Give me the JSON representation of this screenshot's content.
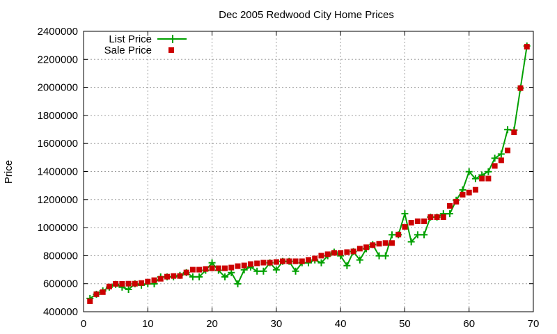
{
  "chart_data": {
    "type": "line",
    "title": "Dec 2005 Redwood City Home Prices",
    "xlabel": "",
    "ylabel": "Price",
    "xlim": [
      0,
      70
    ],
    "ylim": [
      400000,
      2400000
    ],
    "x_ticks": [
      0,
      10,
      20,
      30,
      40,
      50,
      60,
      70
    ],
    "y_ticks": [
      400000,
      600000,
      800000,
      1000000,
      1200000,
      1400000,
      1600000,
      1800000,
      2000000,
      2200000,
      2400000
    ],
    "grid": true,
    "legend_position": "top-left",
    "series": [
      {
        "name": "List Price",
        "style": "linespoints",
        "color": "#00a000",
        "marker": "plus",
        "x": [
          1,
          2,
          3,
          4,
          5,
          6,
          7,
          8,
          9,
          10,
          11,
          12,
          13,
          14,
          15,
          16,
          17,
          18,
          19,
          20,
          21,
          22,
          23,
          24,
          25,
          26,
          27,
          28,
          29,
          30,
          31,
          32,
          33,
          34,
          35,
          36,
          37,
          38,
          39,
          40,
          41,
          42,
          43,
          44,
          45,
          46,
          47,
          48,
          49,
          50,
          51,
          52,
          53,
          54,
          55,
          56,
          57,
          58,
          59,
          60,
          61,
          62,
          63,
          64,
          65,
          66,
          67,
          68,
          69
        ],
        "y": [
          495000,
          525000,
          549000,
          575000,
          595000,
          575000,
          559000,
          599000,
          589000,
          599000,
          599000,
          649000,
          649000,
          649000,
          659000,
          679000,
          649000,
          649000,
          695000,
          749000,
          695000,
          649000,
          679000,
          599000,
          699000,
          719000,
          689000,
          689000,
          749000,
          699000,
          759000,
          759000,
          689000,
          749000,
          749000,
          769000,
          749000,
          799000,
          825000,
          799000,
          729000,
          829000,
          769000,
          849000,
          879000,
          799000,
          799000,
          949000,
          949000,
          1099000,
          899000,
          949000,
          949000,
          1075000,
          1075000,
          1099000,
          1099000,
          1195000,
          1269000,
          1399000,
          1349000,
          1375000,
          1399000,
          1495000,
          1525000,
          1699000,
          1695000,
          1995000,
          2295000
        ]
      },
      {
        "name": "Sale Price",
        "style": "points",
        "color": "#cc0000",
        "marker": "square",
        "x": [
          1,
          2,
          3,
          4,
          5,
          6,
          7,
          8,
          9,
          10,
          11,
          12,
          13,
          14,
          15,
          16,
          17,
          18,
          19,
          20,
          21,
          22,
          23,
          24,
          25,
          26,
          27,
          28,
          29,
          30,
          31,
          32,
          33,
          34,
          35,
          36,
          37,
          38,
          39,
          40,
          41,
          42,
          43,
          44,
          45,
          46,
          47,
          48,
          49,
          50,
          51,
          52,
          53,
          54,
          55,
          56,
          57,
          58,
          59,
          60,
          61,
          62,
          63,
          64,
          65,
          66,
          67,
          68,
          69
        ],
        "y": [
          475000,
          525000,
          540000,
          580000,
          599000,
          599000,
          600000,
          600000,
          605000,
          615000,
          625000,
          635000,
          650000,
          655000,
          655000,
          680000,
          700000,
          700000,
          705000,
          710000,
          710000,
          710000,
          715000,
          725000,
          730000,
          740000,
          745000,
          750000,
          750000,
          755000,
          760000,
          760000,
          760000,
          760000,
          770000,
          780000,
          800000,
          810000,
          820000,
          820000,
          825000,
          830000,
          850000,
          860000,
          875000,
          885000,
          890000,
          890000,
          950000,
          1005000,
          1035000,
          1045000,
          1045000,
          1075000,
          1075000,
          1075000,
          1155000,
          1185000,
          1235000,
          1250000,
          1270000,
          1350000,
          1350000,
          1440000,
          1480000,
          1550000,
          1680000,
          1995000,
          2290000
        ]
      }
    ]
  }
}
